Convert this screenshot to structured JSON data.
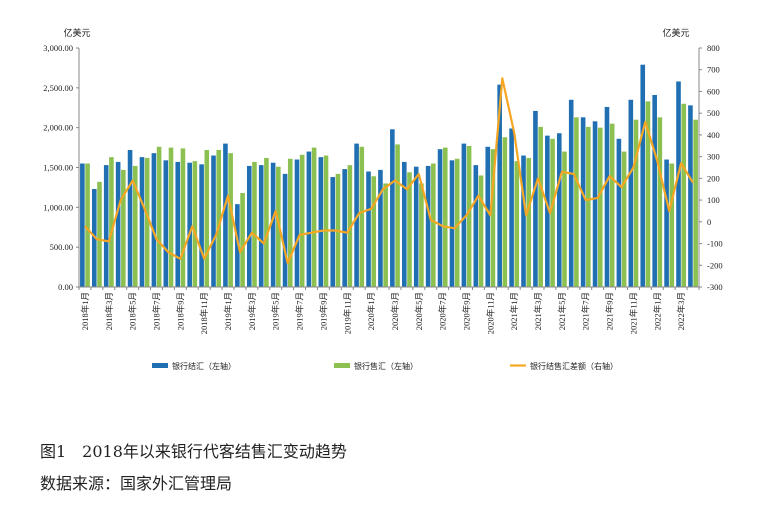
{
  "chart_data": {
    "type": "bar",
    "left_unit": "亿美元",
    "right_unit": "亿美元",
    "left_axis": {
      "min": 0,
      "max": 3000,
      "step": 500,
      "ticks": [
        "0.00",
        "500.00",
        "1,000.00",
        "1,500.00",
        "2,000.00",
        "2,500.00",
        "3,000.00"
      ]
    },
    "right_axis": {
      "min": -300,
      "max": 800,
      "step": 100,
      "ticks": [
        "-300",
        "-200",
        "-100",
        "0",
        "100",
        "200",
        "300",
        "400",
        "500",
        "600",
        "700",
        "800"
      ]
    },
    "categories": [
      "2018年1月",
      "2018年2月",
      "2018年3月",
      "2018年4月",
      "2018年5月",
      "2018年6月",
      "2018年7月",
      "2018年8月",
      "2018年9月",
      "2018年10月",
      "2018年11月",
      "2018年12月",
      "2019年1月",
      "2019年2月",
      "2019年3月",
      "2019年4月",
      "2019年5月",
      "2019年6月",
      "2019年7月",
      "2019年8月",
      "2019年9月",
      "2019年10月",
      "2019年11月",
      "2019年12月",
      "2020年1月",
      "2020年2月",
      "2020年3月",
      "2020年4月",
      "2020年5月",
      "2020年6月",
      "2020年7月",
      "2020年8月",
      "2020年9月",
      "2020年10月",
      "2020年11月",
      "2020年12月",
      "2021年1月",
      "2021年2月",
      "2021年3月",
      "2021年4月",
      "2021年5月",
      "2021年6月",
      "2021年7月",
      "2021年8月",
      "2021年9月",
      "2021年10月",
      "2021年11月",
      "2021年12月",
      "2022年1月",
      "2022年2月",
      "2022年3月",
      "2022年4月"
    ],
    "x_tick_labels": [
      "2018年1月",
      "",
      "2018年3月",
      "",
      "2018年5月",
      "",
      "2018年7月",
      "",
      "2018年9月",
      "",
      "2018年11月",
      "",
      "2019年1月",
      "",
      "2019年3月",
      "",
      "2019年5月",
      "",
      "2019年7月",
      "",
      "2019年9月",
      "",
      "2019年11月",
      "",
      "2020年1月",
      "",
      "2020年3月",
      "",
      "2020年5月",
      "",
      "2020年7月",
      "",
      "2020年9月",
      "",
      "2020年11月",
      "",
      "2021年1月",
      "",
      "2021年3月",
      "",
      "2021年5月",
      "",
      "2021年7月",
      "",
      "2021年9月",
      "",
      "2021年11月",
      "",
      "2022年1月",
      "",
      "2022年3月",
      ""
    ],
    "series": [
      {
        "name": "银行结汇（左轴）",
        "axis": "left",
        "color": "#1f6fb2",
        "values": [
          1550,
          1230,
          1530,
          1570,
          1720,
          1630,
          1680,
          1590,
          1570,
          1560,
          1540,
          1650,
          1800,
          1040,
          1520,
          1530,
          1560,
          1420,
          1600,
          1700,
          1630,
          1380,
          1480,
          1800,
          1450,
          1470,
          1980,
          1570,
          1510,
          1520,
          1730,
          1590,
          1800,
          1530,
          1760,
          2540,
          1990,
          1650,
          2210,
          1900,
          1930,
          2350,
          2130,
          2080,
          2260,
          1860,
          2350,
          2790,
          2410,
          1600,
          2580,
          2280
        ]
      },
      {
        "name": "银行售汇（左轴）",
        "axis": "left",
        "color": "#8cc152",
        "values": [
          1550,
          1320,
          1630,
          1470,
          1520,
          1620,
          1760,
          1750,
          1740,
          1580,
          1720,
          1720,
          1680,
          1180,
          1570,
          1620,
          1510,
          1610,
          1660,
          1750,
          1650,
          1420,
          1530,
          1760,
          1390,
          1300,
          1790,
          1440,
          1300,
          1550,
          1750,
          1610,
          1770,
          1400,
          1730,
          1880,
          1580,
          1620,
          2010,
          1860,
          1700,
          2130,
          2010,
          2000,
          2050,
          1700,
          2100,
          2330,
          2130,
          1550,
          2300,
          2100
        ]
      },
      {
        "name": "银行结售汇差额（右轴）",
        "axis": "right",
        "color": "#f5a623",
        "values": [
          -20,
          -80,
          -90,
          100,
          190,
          60,
          -80,
          -140,
          -170,
          -20,
          -170,
          -60,
          120,
          -140,
          -50,
          -100,
          50,
          -190,
          -60,
          -50,
          -40,
          -40,
          -50,
          40,
          60,
          150,
          190,
          150,
          220,
          10,
          -20,
          -30,
          30,
          120,
          30,
          660,
          410,
          30,
          200,
          40,
          230,
          220,
          100,
          110,
          210,
          160,
          250,
          460,
          280,
          50,
          270,
          180
        ]
      }
    ],
    "grid": false,
    "legend_position": "bottom"
  },
  "caption": {
    "title": "图1　2018年以来银行代客结售汇变动趋势",
    "source": "数据来源：国家外汇管理局"
  }
}
